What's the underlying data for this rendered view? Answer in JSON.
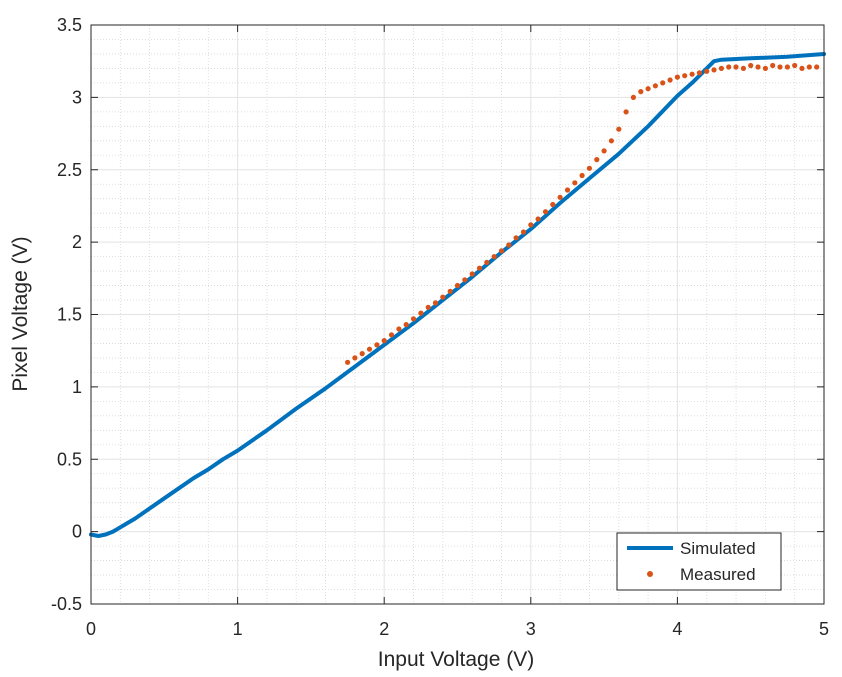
{
  "chart_data": {
    "type": "scatter",
    "xlabel": "Input Voltage (V)",
    "ylabel": "Pixel Voltage (V)",
    "xlim": [
      0,
      5
    ],
    "ylim": [
      -0.5,
      3.5
    ],
    "x_ticks": [
      "0",
      "1",
      "2",
      "3",
      "4",
      "5"
    ],
    "y_ticks": [
      "-0.5",
      "0",
      "0.5",
      "1",
      "1.5",
      "2",
      "2.5",
      "3",
      "3.5"
    ],
    "grid": true,
    "minor_grid": true,
    "legend_position": "bottom-right",
    "series": [
      {
        "name": "Simulated",
        "style": "line",
        "color": "#0072BD",
        "x": [
          0,
          0.05,
          0.1,
          0.15,
          0.2,
          0.3,
          0.4,
          0.5,
          0.6,
          0.7,
          0.8,
          0.9,
          1.0,
          1.2,
          1.4,
          1.6,
          1.8,
          2.0,
          2.2,
          2.4,
          2.6,
          2.8,
          3.0,
          3.2,
          3.4,
          3.6,
          3.8,
          4.0,
          4.1,
          4.2,
          4.25,
          4.3,
          4.5,
          4.75,
          5.0
        ],
        "y": [
          -0.02,
          -0.03,
          -0.02,
          0.0,
          0.03,
          0.09,
          0.16,
          0.23,
          0.3,
          0.37,
          0.43,
          0.5,
          0.56,
          0.7,
          0.85,
          0.99,
          1.14,
          1.29,
          1.44,
          1.6,
          1.76,
          1.93,
          2.09,
          2.27,
          2.44,
          2.61,
          2.8,
          3.01,
          3.1,
          3.2,
          3.25,
          3.26,
          3.27,
          3.28,
          3.3
        ]
      },
      {
        "name": "Measured",
        "style": "scatter",
        "color": "#D95319",
        "x": [
          1.75,
          1.8,
          1.85,
          1.9,
          1.95,
          2.0,
          2.05,
          2.1,
          2.15,
          2.2,
          2.25,
          2.3,
          2.35,
          2.4,
          2.45,
          2.5,
          2.55,
          2.6,
          2.65,
          2.7,
          2.75,
          2.8,
          2.85,
          2.9,
          2.95,
          3.0,
          3.05,
          3.1,
          3.15,
          3.2,
          3.25,
          3.3,
          3.35,
          3.4,
          3.45,
          3.5,
          3.55,
          3.6,
          3.65,
          3.7,
          3.75,
          3.8,
          3.85,
          3.9,
          3.95,
          4.0,
          4.05,
          4.1,
          4.15,
          4.2,
          4.25,
          4.3,
          4.35,
          4.4,
          4.45,
          4.5,
          4.55,
          4.6,
          4.65,
          4.7,
          4.75,
          4.8,
          4.85,
          4.9,
          4.95
        ],
        "y": [
          1.17,
          1.2,
          1.23,
          1.26,
          1.29,
          1.32,
          1.36,
          1.4,
          1.43,
          1.47,
          1.51,
          1.55,
          1.58,
          1.62,
          1.66,
          1.7,
          1.74,
          1.78,
          1.82,
          1.86,
          1.9,
          1.94,
          1.98,
          2.03,
          2.07,
          2.12,
          2.16,
          2.21,
          2.26,
          2.31,
          2.36,
          2.41,
          2.46,
          2.51,
          2.57,
          2.63,
          2.7,
          2.78,
          2.9,
          3.0,
          3.04,
          3.06,
          3.08,
          3.1,
          3.12,
          3.14,
          3.15,
          3.16,
          3.17,
          3.18,
          3.19,
          3.2,
          3.21,
          3.21,
          3.2,
          3.22,
          3.21,
          3.2,
          3.22,
          3.21,
          3.21,
          3.22,
          3.2,
          3.21,
          3.21
        ]
      }
    ]
  }
}
